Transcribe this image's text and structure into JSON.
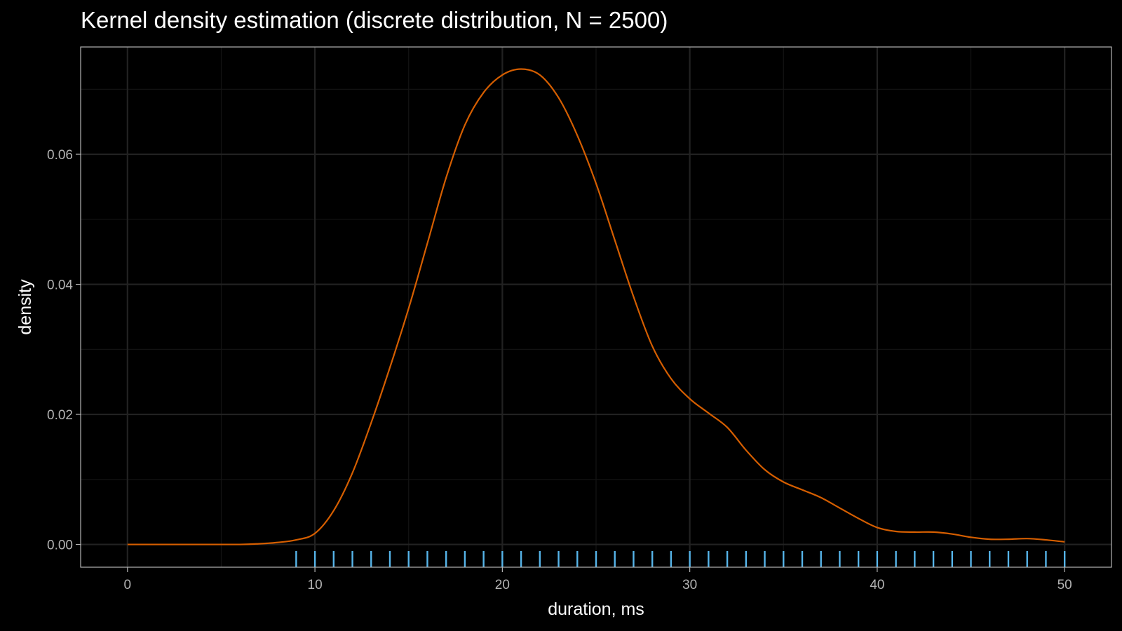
{
  "colors": {
    "background": "#000000",
    "panel_border": "#b3b3b3",
    "grid_major": "#222222",
    "grid_minor": "#141414",
    "tick_label": "#b3b3b3",
    "density_line": "#d55e00",
    "rug": "#56b4e9"
  },
  "chart_data": {
    "type": "line",
    "title": "Kernel density estimation (discrete distribution, N = 2500)",
    "xlabel": "duration, ms",
    "ylabel": "density",
    "xlim": [
      -2.5,
      52.5
    ],
    "ylim": [
      -0.0035,
      0.0765
    ],
    "x_ticks": [
      0,
      10,
      20,
      30,
      40,
      50
    ],
    "x_tick_labels": [
      "0",
      "10",
      "20",
      "30",
      "40",
      "50"
    ],
    "y_ticks": [
      0.0,
      0.02,
      0.04,
      0.06
    ],
    "y_tick_labels": [
      "0.00",
      "0.02",
      "0.04",
      "0.06"
    ],
    "grid": true,
    "legend": "none",
    "series": [
      {
        "x": [
          0,
          2,
          4,
          6,
          7,
          8,
          9,
          10,
          11,
          12,
          13,
          14,
          15,
          16,
          17,
          18,
          19,
          20,
          21,
          22,
          23,
          24,
          25,
          26,
          27,
          28,
          29,
          30,
          31,
          32,
          33,
          34,
          35,
          36,
          37,
          38,
          39,
          40,
          41,
          42,
          43,
          44,
          45,
          46,
          47,
          48,
          49,
          50
        ],
        "y": [
          0.0,
          0.0,
          0.0,
          0.0,
          0.0001,
          0.0003,
          0.0007,
          0.0017,
          0.0052,
          0.011,
          0.0187,
          0.0272,
          0.0363,
          0.0463,
          0.0564,
          0.0645,
          0.0695,
          0.0722,
          0.0731,
          0.0722,
          0.0687,
          0.0629,
          0.0555,
          0.0468,
          0.0381,
          0.0305,
          0.0255,
          0.0224,
          0.0202,
          0.018,
          0.0145,
          0.0115,
          0.0096,
          0.0084,
          0.0072,
          0.0056,
          0.004,
          0.0026,
          0.002,
          0.0019,
          0.0019,
          0.0016,
          0.0011,
          0.0008,
          0.0008,
          0.0009,
          0.0007,
          0.0004
        ]
      }
    ],
    "rug_x": [
      9,
      10,
      11,
      12,
      13,
      14,
      15,
      16,
      17,
      18,
      19,
      20,
      21,
      22,
      23,
      24,
      25,
      26,
      27,
      28,
      29,
      30,
      31,
      32,
      33,
      34,
      35,
      36,
      37,
      38,
      39,
      40,
      41,
      42,
      43,
      44,
      45,
      46,
      47,
      48,
      49,
      50
    ]
  }
}
